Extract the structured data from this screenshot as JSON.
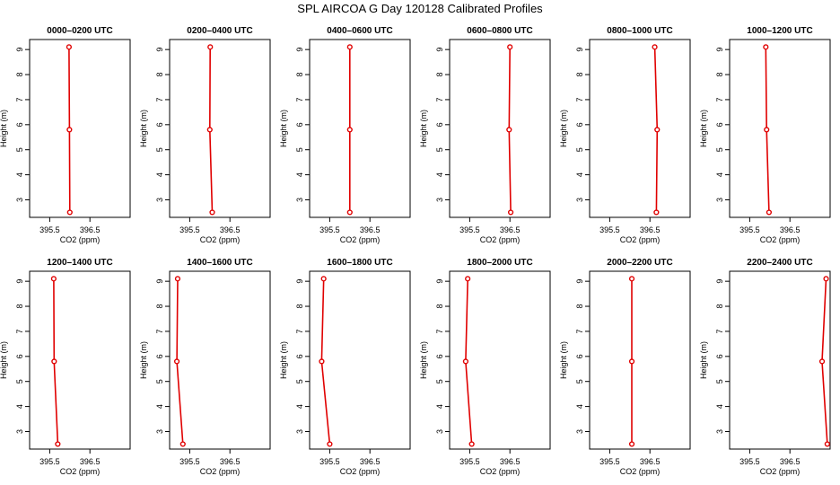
{
  "figure": {
    "title": "SPL AIRCOA G  Day 120128  Calibrated Profiles"
  },
  "colors": {
    "profile": "#e00000",
    "axes": "#000000",
    "background": "#ffffff"
  },
  "chart_data": [
    {
      "type": "line",
      "title": "0000–0200 UTC",
      "xlabel": "CO2 (ppm)",
      "ylabel": "Height (m)",
      "xlim": [
        395.0,
        397.5
      ],
      "ylim": [
        2.3,
        9.4
      ],
      "grid": false,
      "xticks": [
        395.5,
        396.5
      ],
      "xtick_labels": [
        "395.5",
        "396.5"
      ],
      "yticks": [
        3,
        4,
        5,
        6,
        7,
        8,
        9
      ],
      "ytick_labels": [
        "3",
        "4",
        "5",
        "6",
        "7",
        "8",
        "9"
      ],
      "series": [
        {
          "x": [
            395.98,
            395.99,
            396.0
          ],
          "y": [
            9.1,
            5.8,
            2.5
          ]
        }
      ]
    },
    {
      "type": "line",
      "title": "0200–0400 UTC",
      "xlabel": "CO2 (ppm)",
      "ylabel": "Height (m)",
      "xlim": [
        395.0,
        397.5
      ],
      "ylim": [
        2.3,
        9.4
      ],
      "grid": false,
      "xticks": [
        395.5,
        396.5
      ],
      "xtick_labels": [
        "395.5",
        "396.5"
      ],
      "yticks": [
        3,
        4,
        5,
        6,
        7,
        8,
        9
      ],
      "ytick_labels": [
        "3",
        "4",
        "5",
        "6",
        "7",
        "8",
        "9"
      ],
      "series": [
        {
          "x": [
            396.01,
            396.0,
            396.06
          ],
          "y": [
            9.1,
            5.8,
            2.5
          ]
        }
      ]
    },
    {
      "type": "line",
      "title": "0400–0600 UTC",
      "xlabel": "CO2 (ppm)",
      "ylabel": "Height (m)",
      "xlim": [
        395.0,
        397.5
      ],
      "ylim": [
        2.3,
        9.4
      ],
      "grid": false,
      "xticks": [
        395.5,
        396.5
      ],
      "xtick_labels": [
        "395.5",
        "396.5"
      ],
      "yticks": [
        3,
        4,
        5,
        6,
        7,
        8,
        9
      ],
      "ytick_labels": [
        "3",
        "4",
        "5",
        "6",
        "7",
        "8",
        "9"
      ],
      "series": [
        {
          "x": [
            396.0,
            396.0,
            396.0
          ],
          "y": [
            9.1,
            5.8,
            2.5
          ]
        }
      ]
    },
    {
      "type": "line",
      "title": "0600–0800 UTC",
      "xlabel": "CO2 (ppm)",
      "ylabel": "Height (m)",
      "xlim": [
        395.0,
        397.5
      ],
      "ylim": [
        2.3,
        9.4
      ],
      "grid": false,
      "xticks": [
        395.5,
        396.5
      ],
      "xtick_labels": [
        "395.5",
        "396.5"
      ],
      "yticks": [
        3,
        4,
        5,
        6,
        7,
        8,
        9
      ],
      "ytick_labels": [
        "3",
        "4",
        "5",
        "6",
        "7",
        "8",
        "9"
      ],
      "series": [
        {
          "x": [
            396.5,
            396.48,
            396.52
          ],
          "y": [
            9.1,
            5.8,
            2.5
          ]
        }
      ]
    },
    {
      "type": "line",
      "title": "0800–1000 UTC",
      "xlabel": "CO2 (ppm)",
      "ylabel": "Height (m)",
      "xlim": [
        395.0,
        397.5
      ],
      "ylim": [
        2.3,
        9.4
      ],
      "grid": false,
      "xticks": [
        395.5,
        396.5
      ],
      "xtick_labels": [
        "395.5",
        "396.5"
      ],
      "yticks": [
        3,
        4,
        5,
        6,
        7,
        8,
        9
      ],
      "ytick_labels": [
        "3",
        "4",
        "5",
        "6",
        "7",
        "8",
        "9"
      ],
      "series": [
        {
          "x": [
            396.62,
            396.68,
            396.66
          ],
          "y": [
            9.1,
            5.8,
            2.5
          ]
        }
      ]
    },
    {
      "type": "line",
      "title": "1000–1200 UTC",
      "xlabel": "CO2 (ppm)",
      "ylabel": "Height (m)",
      "xlim": [
        395.0,
        397.5
      ],
      "ylim": [
        2.3,
        9.4
      ],
      "grid": false,
      "xticks": [
        395.5,
        396.5
      ],
      "xtick_labels": [
        "395.5",
        "396.5"
      ],
      "yticks": [
        3,
        4,
        5,
        6,
        7,
        8,
        9
      ],
      "ytick_labels": [
        "3",
        "4",
        "5",
        "6",
        "7",
        "8",
        "9"
      ],
      "series": [
        {
          "x": [
            395.9,
            395.92,
            395.98
          ],
          "y": [
            9.1,
            5.8,
            2.5
          ]
        }
      ]
    },
    {
      "type": "line",
      "title": "1200–1400 UTC",
      "xlabel": "CO2 (ppm)",
      "ylabel": "Height (m)",
      "xlim": [
        395.0,
        397.5
      ],
      "ylim": [
        2.3,
        9.4
      ],
      "grid": false,
      "xticks": [
        395.5,
        396.5
      ],
      "xtick_labels": [
        "395.5",
        "396.5"
      ],
      "yticks": [
        3,
        4,
        5,
        6,
        7,
        8,
        9
      ],
      "ytick_labels": [
        "3",
        "4",
        "5",
        "6",
        "7",
        "8",
        "9"
      ],
      "series": [
        {
          "x": [
            395.6,
            395.61,
            395.7
          ],
          "y": [
            9.1,
            5.8,
            2.5
          ]
        }
      ]
    },
    {
      "type": "line",
      "title": "1400–1600 UTC",
      "xlabel": "CO2 (ppm)",
      "ylabel": "Height (m)",
      "xlim": [
        395.0,
        397.5
      ],
      "ylim": [
        2.3,
        9.4
      ],
      "grid": false,
      "xticks": [
        395.5,
        396.5
      ],
      "xtick_labels": [
        "395.5",
        "396.5"
      ],
      "yticks": [
        3,
        4,
        5,
        6,
        7,
        8,
        9
      ],
      "ytick_labels": [
        "3",
        "4",
        "5",
        "6",
        "7",
        "8",
        "9"
      ],
      "series": [
        {
          "x": [
            395.2,
            395.18,
            395.33
          ],
          "y": [
            9.1,
            5.8,
            2.5
          ]
        }
      ]
    },
    {
      "type": "line",
      "title": "1600–1800 UTC",
      "xlabel": "CO2 (ppm)",
      "ylabel": "Height (m)",
      "xlim": [
        395.0,
        397.5
      ],
      "ylim": [
        2.3,
        9.4
      ],
      "grid": false,
      "xticks": [
        395.5,
        396.5
      ],
      "xtick_labels": [
        "395.5",
        "396.5"
      ],
      "yticks": [
        3,
        4,
        5,
        6,
        7,
        8,
        9
      ],
      "ytick_labels": [
        "3",
        "4",
        "5",
        "6",
        "7",
        "8",
        "9"
      ],
      "series": [
        {
          "x": [
            395.35,
            395.3,
            395.5
          ],
          "y": [
            9.1,
            5.8,
            2.5
          ]
        }
      ]
    },
    {
      "type": "line",
      "title": "1800–2000 UTC",
      "xlabel": "CO2 (ppm)",
      "ylabel": "Height (m)",
      "xlim": [
        395.0,
        397.5
      ],
      "ylim": [
        2.3,
        9.4
      ],
      "grid": false,
      "xticks": [
        395.5,
        396.5
      ],
      "xtick_labels": [
        "395.5",
        "396.5"
      ],
      "yticks": [
        3,
        4,
        5,
        6,
        7,
        8,
        9
      ],
      "ytick_labels": [
        "3",
        "4",
        "5",
        "6",
        "7",
        "8",
        "9"
      ],
      "series": [
        {
          "x": [
            395.45,
            395.4,
            395.55
          ],
          "y": [
            9.1,
            5.8,
            2.5
          ]
        }
      ]
    },
    {
      "type": "line",
      "title": "2000–2200 UTC",
      "xlabel": "CO2 (ppm)",
      "ylabel": "Height (m)",
      "xlim": [
        395.0,
        397.5
      ],
      "ylim": [
        2.3,
        9.4
      ],
      "grid": false,
      "xticks": [
        395.5,
        396.5
      ],
      "xtick_labels": [
        "395.5",
        "396.5"
      ],
      "yticks": [
        3,
        4,
        5,
        6,
        7,
        8,
        9
      ],
      "ytick_labels": [
        "3",
        "4",
        "5",
        "6",
        "7",
        "8",
        "9"
      ],
      "series": [
        {
          "x": [
            396.05,
            396.05,
            396.05
          ],
          "y": [
            9.1,
            5.8,
            2.5
          ]
        }
      ]
    },
    {
      "type": "line",
      "title": "2200–2400 UTC",
      "xlabel": "CO2 (ppm)",
      "ylabel": "Height (m)",
      "xlim": [
        395.0,
        397.5
      ],
      "ylim": [
        2.3,
        9.4
      ],
      "grid": false,
      "xticks": [
        395.5,
        396.5
      ],
      "xtick_labels": [
        "395.5",
        "396.5"
      ],
      "yticks": [
        3,
        4,
        5,
        6,
        7,
        8,
        9
      ],
      "ytick_labels": [
        "3",
        "4",
        "5",
        "6",
        "7",
        "8",
        "9"
      ],
      "series": [
        {
          "x": [
            397.4,
            397.3,
            397.43
          ],
          "y": [
            9.1,
            5.8,
            2.5
          ]
        }
      ]
    }
  ]
}
